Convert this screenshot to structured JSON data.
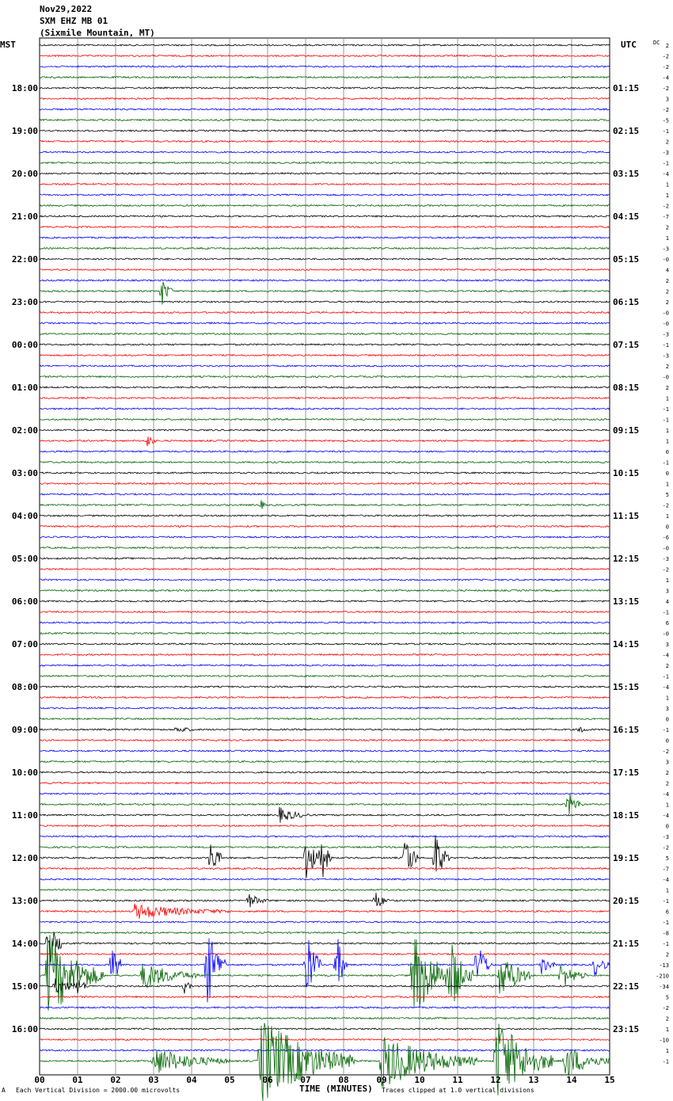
{
  "header": {
    "date": "Nov29,2022",
    "station": "SXM EHZ MB 01",
    "location": "(Sixmile Mountain, MT)"
  },
  "left_axis_label": "MST",
  "right_axis_label": "UTC",
  "dc_label": "DC",
  "footer": {
    "scale_note": "Each Vertical Division = 2000.00 microvolts",
    "clip_note": "Traces clipped at 1.0 vertical divisions",
    "prefix_mark": "A"
  },
  "chart_data": {
    "type": "line",
    "title": "SXM EHZ MB 01 (Sixmile Mountain, MT)",
    "xlabel": "TIME (MINUTES)",
    "x_ticks": [
      "00",
      "01",
      "02",
      "03",
      "04",
      "05",
      "06",
      "07",
      "08",
      "09",
      "10",
      "11",
      "12",
      "13",
      "14",
      "15"
    ],
    "xlim": [
      0,
      15
    ],
    "rows_per_hour": 4,
    "row_count": 96,
    "trace_colors": [
      "#000000",
      "#ff0000",
      "#0000ff",
      "#006400"
    ],
    "mst_hour_labels": [
      "18:00",
      "19:00",
      "20:00",
      "21:00",
      "22:00",
      "23:00",
      "00:00",
      "01:00",
      "02:00",
      "03:00",
      "04:00",
      "05:00",
      "06:00",
      "07:00",
      "08:00",
      "09:00",
      "10:00",
      "11:00",
      "12:00",
      "13:00",
      "14:00",
      "15:00",
      "16:00"
    ],
    "utc_hour_labels": [
      "01:15",
      "02:15",
      "03:15",
      "04:15",
      "05:15",
      "06:15",
      "07:15",
      "08:15",
      "09:15",
      "10:15",
      "11:15",
      "12:15",
      "13:15",
      "14:15",
      "15:15",
      "16:15",
      "17:15",
      "18:15",
      "19:15",
      "20:15",
      "21:15",
      "22:15",
      "23:15"
    ],
    "dc_offsets": [
      "2",
      "-2",
      "-2",
      "-4",
      "-2",
      "3",
      "-2",
      "-5",
      "-1",
      "2",
      "-3",
      "-1",
      "-4",
      "1",
      "1",
      "-2",
      "-7",
      "2",
      "1",
      "-3",
      "-0",
      "4",
      "2",
      "2",
      "2",
      "-0",
      "-0",
      "-3",
      "-1",
      "-3",
      "2",
      "-0",
      "2",
      "1",
      "-1",
      "-1",
      "1",
      "1",
      "0",
      "-1",
      "0",
      "1",
      "5",
      "-2",
      "1",
      "0",
      "-6",
      "-0",
      "-3",
      "-2",
      "1",
      "3",
      "4",
      "-1",
      "6",
      "-0",
      "3",
      "-4",
      "2",
      "-1",
      "-4",
      "1",
      "3",
      "0",
      "-1",
      "0",
      "-2",
      "3",
      "2",
      "2",
      "-4",
      "1",
      "-4",
      "0",
      "-3",
      "-2",
      "5",
      "-7",
      "-4",
      "1",
      "-1",
      "6",
      "-1",
      "-8",
      "-1",
      "2",
      "-13",
      "-210",
      "-34",
      "5",
      "-2",
      "2",
      "1",
      "-10",
      "1",
      "-1"
    ],
    "events": [
      {
        "row": 23,
        "minute": 3.2,
        "amplitude": 1.8,
        "duration_min": 0.3
      },
      {
        "row": 37,
        "minute": 2.8,
        "amplitude": 0.8,
        "duration_min": 0.3
      },
      {
        "row": 43,
        "minute": 5.8,
        "amplitude": 0.6,
        "duration_min": 0.2
      },
      {
        "row": 64,
        "minute": 3.6,
        "amplitude": 0.4,
        "duration_min": 0.5
      },
      {
        "row": 64,
        "minute": 14.2,
        "amplitude": 0.4,
        "duration_min": 0.3
      },
      {
        "row": 71,
        "minute": 13.9,
        "amplitude": 1.5,
        "duration_min": 0.4
      },
      {
        "row": 72,
        "minute": 6.3,
        "amplitude": 0.8,
        "duration_min": 0.8
      },
      {
        "row": 76,
        "minute": 7.0,
        "amplitude": 4.0,
        "duration_min": 0.3
      },
      {
        "row": 76,
        "minute": 7.4,
        "amplitude": 3.0,
        "duration_min": 0.3
      },
      {
        "row": 76,
        "minute": 4.5,
        "amplitude": 2.5,
        "duration_min": 0.3
      },
      {
        "row": 76,
        "minute": 9.6,
        "amplitude": 3.0,
        "duration_min": 0.4
      },
      {
        "row": 76,
        "minute": 10.4,
        "amplitude": 3.0,
        "duration_min": 0.4
      },
      {
        "row": 80,
        "minute": 5.5,
        "amplitude": 0.8,
        "duration_min": 0.5
      },
      {
        "row": 80,
        "minute": 8.8,
        "amplitude": 1.2,
        "duration_min": 0.4
      },
      {
        "row": 81,
        "minute": 2.5,
        "amplitude": 0.8,
        "duration_min": 2.5
      },
      {
        "row": 84,
        "minute": 0.2,
        "amplitude": 3.0,
        "duration_min": 0.4
      },
      {
        "row": 86,
        "minute": 1.9,
        "amplitude": 3.0,
        "duration_min": 0.3
      },
      {
        "row": 86,
        "minute": 4.4,
        "amplitude": 5.0,
        "duration_min": 0.5
      },
      {
        "row": 86,
        "minute": 7.0,
        "amplitude": 5.0,
        "duration_min": 0.4
      },
      {
        "row": 86,
        "minute": 7.8,
        "amplitude": 4.0,
        "duration_min": 0.3
      },
      {
        "row": 86,
        "minute": 11.5,
        "amplitude": 3.0,
        "duration_min": 0.4
      },
      {
        "row": 86,
        "minute": 13.2,
        "amplitude": 1.0,
        "duration_min": 0.4
      },
      {
        "row": 86,
        "minute": 14.6,
        "amplitude": 1.2,
        "duration_min": 0.5
      },
      {
        "row": 87,
        "minute": 0.2,
        "amplitude": 5.0,
        "duration_min": 1.5
      },
      {
        "row": 87,
        "minute": 2.7,
        "amplitude": 1.5,
        "duration_min": 1.5
      },
      {
        "row": 87,
        "minute": 9.8,
        "amplitude": 5.0,
        "duration_min": 1.2
      },
      {
        "row": 87,
        "minute": 10.8,
        "amplitude": 4.0,
        "duration_min": 0.6
      },
      {
        "row": 87,
        "minute": 12.1,
        "amplitude": 3.0,
        "duration_min": 0.8
      },
      {
        "row": 87,
        "minute": 13.7,
        "amplitude": 1.5,
        "duration_min": 0.7
      },
      {
        "row": 88,
        "minute": 0.4,
        "amplitude": 0.8,
        "duration_min": 0.8
      },
      {
        "row": 88,
        "minute": 1.0,
        "amplitude": 0.8,
        "duration_min": 0.3
      },
      {
        "row": 88,
        "minute": 3.8,
        "amplitude": 1.0,
        "duration_min": 0.2
      },
      {
        "row": 95,
        "minute": 3.0,
        "amplitude": 1.5,
        "duration_min": 2.0
      },
      {
        "row": 95,
        "minute": 5.8,
        "amplitude": 5.0,
        "duration_min": 2.5
      },
      {
        "row": 95,
        "minute": 9.0,
        "amplitude": 3.0,
        "duration_min": 2.5
      },
      {
        "row": 95,
        "minute": 12.0,
        "amplitude": 5.0,
        "duration_min": 1.5
      },
      {
        "row": 95,
        "minute": 13.8,
        "amplitude": 2.0,
        "duration_min": 1.2
      }
    ]
  }
}
